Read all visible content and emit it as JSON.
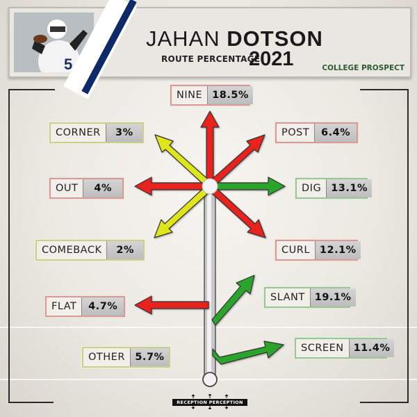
{
  "player": {
    "first_name": "JAHAN",
    "last_name": "DOTSON"
  },
  "subtitle": "ROUTE PERCENTAGE",
  "year": "2021",
  "tag": "COLLEGE PROSPECT",
  "brand": "RECEPTION PERCEPTION",
  "colors": {
    "red": "#e8201c",
    "yellow": "#dfe51c",
    "green": "#2aa42a",
    "navy": "#0e2a6b"
  },
  "routes": {
    "nine": {
      "name": "NINE",
      "value": "18.5%",
      "color": "red"
    },
    "corner": {
      "name": "CORNER",
      "value": "3%",
      "color": "yellow"
    },
    "post": {
      "name": "POST",
      "value": "6.4%",
      "color": "red"
    },
    "out": {
      "name": "OUT",
      "value": "4%",
      "color": "red"
    },
    "dig": {
      "name": "DIG",
      "value": "13.1%",
      "color": "green"
    },
    "comeback": {
      "name": "COMEBACK",
      "value": "2%",
      "color": "yellow"
    },
    "curl": {
      "name": "CURL",
      "value": "12.1%",
      "color": "red"
    },
    "slant": {
      "name": "SLANT",
      "value": "19.1%",
      "color": "green"
    },
    "flat": {
      "name": "FLAT",
      "value": "4.7%",
      "color": "red"
    },
    "screen": {
      "name": "SCREEN",
      "value": "11.4%",
      "color": "green"
    },
    "other": {
      "name": "OTHER",
      "value": "5.7%",
      "color": "yellow"
    }
  }
}
